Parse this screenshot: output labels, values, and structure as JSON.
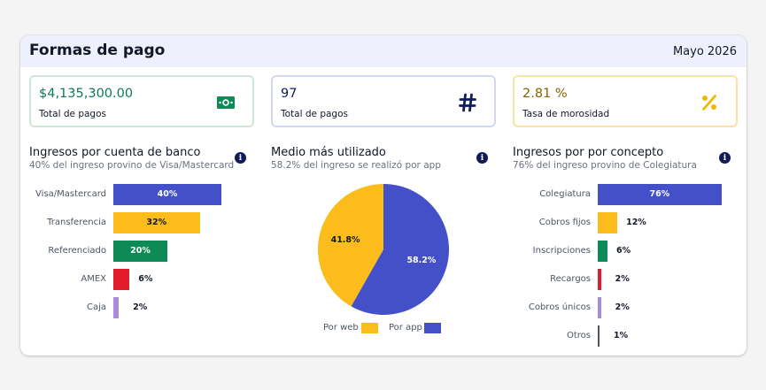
{
  "header": {
    "title": "Formas de pago",
    "date": "Mayo 2026"
  },
  "kpis": [
    {
      "value": "$4,135,300.00",
      "label": "Total de pagos",
      "icon": "money-icon",
      "color": "#0e7a51",
      "border": "#cfe5d8"
    },
    {
      "value": "97",
      "label": "Total de pagos",
      "icon": "hash-icon",
      "color": "#0f1b5c",
      "border": "#d5d8f5"
    },
    {
      "value": "2.81 %",
      "label": "Tasa de morosidad",
      "icon": "percent-icon",
      "color": "#8a6200",
      "border": "#fbe3a6"
    }
  ],
  "bank": {
    "title": "Ingresos por cuenta de banco",
    "subtitle": "40% del ingreso provino de Visa/Mastercard",
    "items": [
      {
        "label": "Visa/Mastercard",
        "value": 40,
        "display": "40%",
        "color": "#4350c7",
        "text_color": "#ffffff"
      },
      {
        "label": "Transferencia",
        "value": 32,
        "display": "32%",
        "color": "#fbbc1c",
        "text_color": "#111827"
      },
      {
        "label": "Referenciado",
        "value": 20,
        "display": "20%",
        "color": "#0e8a57",
        "text_color": "#ffffff"
      },
      {
        "label": "AMEX",
        "value": 6,
        "display": "6%",
        "color": "#e11d2b",
        "text_color": "#111827"
      },
      {
        "label": "Caja",
        "value": 2,
        "display": "2%",
        "color": "#a78bdc",
        "text_color": "#111827"
      }
    ]
  },
  "medio": {
    "title": "Medio más utilizado",
    "subtitle": "58.2% del ingreso se realizó por app",
    "slices": [
      {
        "label": "Por web",
        "value": 41.8,
        "display": "41.8%",
        "color": "#fbbc1c",
        "text_color": "#111827"
      },
      {
        "label": "Por app",
        "value": 58.2,
        "display": "58.2%",
        "color": "#4350c7",
        "text_color": "#ffffff"
      }
    ]
  },
  "concepto": {
    "title": "Ingresos por por concepto",
    "subtitle": "76% del ingreso provino de Colegiatura",
    "items": [
      {
        "label": "Colegiatura",
        "value": 76,
        "display": "76%",
        "color": "#4350c7",
        "text_color": "#ffffff"
      },
      {
        "label": "Cobros fijos",
        "value": 12,
        "display": "12%",
        "color": "#fbbc1c",
        "text_color": "#111827"
      },
      {
        "label": "Inscripciones",
        "value": 6,
        "display": "6%",
        "color": "#0e8a57",
        "text_color": "#111827"
      },
      {
        "label": "Recargos",
        "value": 2,
        "display": "2%",
        "color": "#e11d2b",
        "text_color": "#111827"
      },
      {
        "label": "Cobros únicos",
        "value": 2,
        "display": "2%",
        "color": "#a78bdc",
        "text_color": "#111827"
      },
      {
        "label": "Otros",
        "value": 1,
        "display": "1%",
        "color": "#4b5563",
        "text_color": "#111827"
      }
    ]
  },
  "info_icon": "info-icon"
}
